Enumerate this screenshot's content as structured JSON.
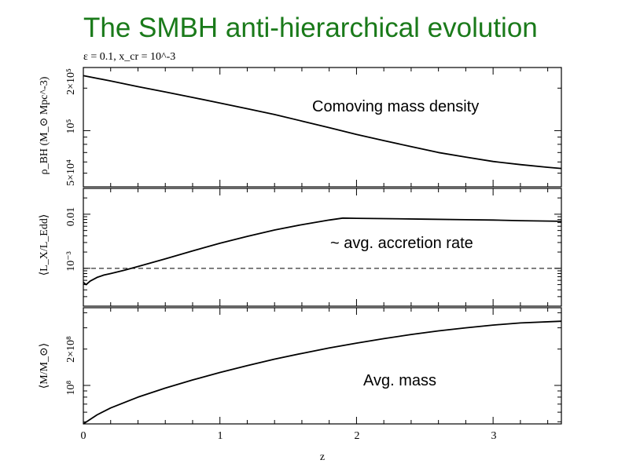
{
  "title": "The SMBH anti-hierarchical evolution",
  "params_label": "ε = 0.1, x_cr = 10^-3",
  "colors": {
    "title": "#1a7a1a",
    "line": "#000000"
  },
  "chart_data": [
    {
      "type": "line",
      "panel": "top",
      "ylabel": "ρ_BH (M_⊙ Mpc^-3)",
      "annotation": "Comoving mass density",
      "yscale": "log",
      "ylim": [
        40000,
        280000
      ],
      "xlim": [
        0,
        3.5
      ],
      "ytick_labels": [
        "5×10⁴",
        "10⁵",
        "2×10⁵"
      ],
      "series": [
        {
          "x": [
            0,
            0.2,
            0.4,
            0.6,
            0.8,
            1.0,
            1.2,
            1.4,
            1.6,
            1.8,
            2.0,
            2.2,
            2.4,
            2.6,
            2.8,
            3.0,
            3.2,
            3.4,
            3.5
          ],
          "y": [
            245000,
            225000,
            205000,
            188000,
            172000,
            157000,
            143000,
            130000,
            117000,
            105000,
            94000,
            85000,
            77000,
            70000,
            65000,
            60500,
            57500,
            55000,
            54000
          ]
        }
      ]
    },
    {
      "type": "line",
      "panel": "middle",
      "ylabel": "⟨L_X/L_Edd⟩",
      "annotation": "~ avg. accretion rate",
      "yscale": "log",
      "ylim": [
        0.0002,
        0.03
      ],
      "xlim": [
        0,
        3.5
      ],
      "ytick_labels": [
        "10⁻³",
        "0.01"
      ],
      "reference_line": {
        "y": 0.001,
        "style": "dashed"
      },
      "series": [
        {
          "x": [
            0,
            0.02,
            0.05,
            0.1,
            0.15,
            0.2,
            0.3,
            0.4,
            0.6,
            0.8,
            1.0,
            1.2,
            1.4,
            1.6,
            1.8,
            1.9,
            2.0,
            2.2,
            2.5,
            2.8,
            3.0,
            3.2,
            3.5
          ],
          "y": [
            0.00055,
            0.0005,
            0.00058,
            0.00068,
            0.00075,
            0.0008,
            0.00092,
            0.00108,
            0.0015,
            0.0021,
            0.0029,
            0.0039,
            0.0051,
            0.0064,
            0.0078,
            0.0085,
            0.0084,
            0.0083,
            0.0081,
            0.0079,
            0.0078,
            0.0076,
            0.0074
          ]
        }
      ]
    },
    {
      "type": "line",
      "panel": "bottom",
      "ylabel": "⟨M/M_⊙⟩",
      "annotation": "Avg. mass",
      "yscale": "log",
      "ylim": [
        48000000,
        440000000
      ],
      "xlim": [
        0,
        3.5
      ],
      "xlabel": "z",
      "xtick_labels": [
        "0",
        "1",
        "2",
        "3"
      ],
      "ytick_labels": [
        "10⁸",
        "2×10⁸"
      ],
      "series": [
        {
          "x": [
            0,
            0.1,
            0.2,
            0.4,
            0.6,
            0.8,
            1.0,
            1.2,
            1.4,
            1.6,
            1.8,
            2.0,
            2.2,
            2.4,
            2.6,
            2.8,
            3.0,
            3.2,
            3.5
          ],
          "y": [
            48000000,
            57000000,
            65000000,
            80000000,
            95000000,
            111000000,
            128000000,
            146000000,
            165000000,
            184000000,
            204000000,
            224000000,
            244000000,
            264000000,
            283000000,
            300000000,
            316000000,
            329000000,
            340000000
          ]
        }
      ]
    }
  ]
}
